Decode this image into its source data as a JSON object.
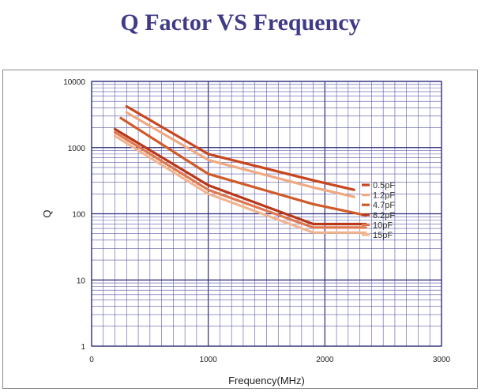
{
  "title": "Q Factor VS Frequency",
  "chart_data": {
    "type": "line",
    "xlabel": "Frequency(MHz)",
    "ylabel": "Q",
    "xlim": [
      0,
      3000
    ],
    "ylim": [
      1,
      10000
    ],
    "yscale": "log",
    "grid": true,
    "legend_position": "right",
    "x_ticks": [
      "0",
      "1000",
      "2000",
      "3000"
    ],
    "y_ticks": [
      "1",
      "10",
      "100",
      "1000",
      "10000"
    ],
    "series": [
      {
        "name": "0.5pF",
        "color": "#c8461e",
        "x": [
          300,
          1000,
          1900,
          2250
        ],
        "y": [
          4200,
          800,
          320,
          230
        ]
      },
      {
        "name": "1.2pF",
        "color": "#f0a880",
        "x": [
          300,
          1000,
          1900,
          2250
        ],
        "y": [
          3400,
          650,
          250,
          180
        ]
      },
      {
        "name": "4.7pF",
        "color": "#d05a28",
        "x": [
          250,
          1000,
          1900,
          2350
        ],
        "y": [
          2800,
          400,
          140,
          95
        ]
      },
      {
        "name": "8.2pF",
        "color": "#b83818",
        "x": [
          200,
          1000,
          1900,
          2350
        ],
        "y": [
          1900,
          270,
          70,
          70
        ]
      },
      {
        "name": "10pF",
        "color": "#e07850",
        "x": [
          200,
          1000,
          1900,
          2350
        ],
        "y": [
          1700,
          230,
          62,
          62
        ]
      },
      {
        "name": "15pF",
        "color": "#f2b590",
        "x": [
          200,
          1000,
          1900,
          2350
        ],
        "y": [
          1500,
          200,
          52,
          52
        ]
      }
    ]
  }
}
